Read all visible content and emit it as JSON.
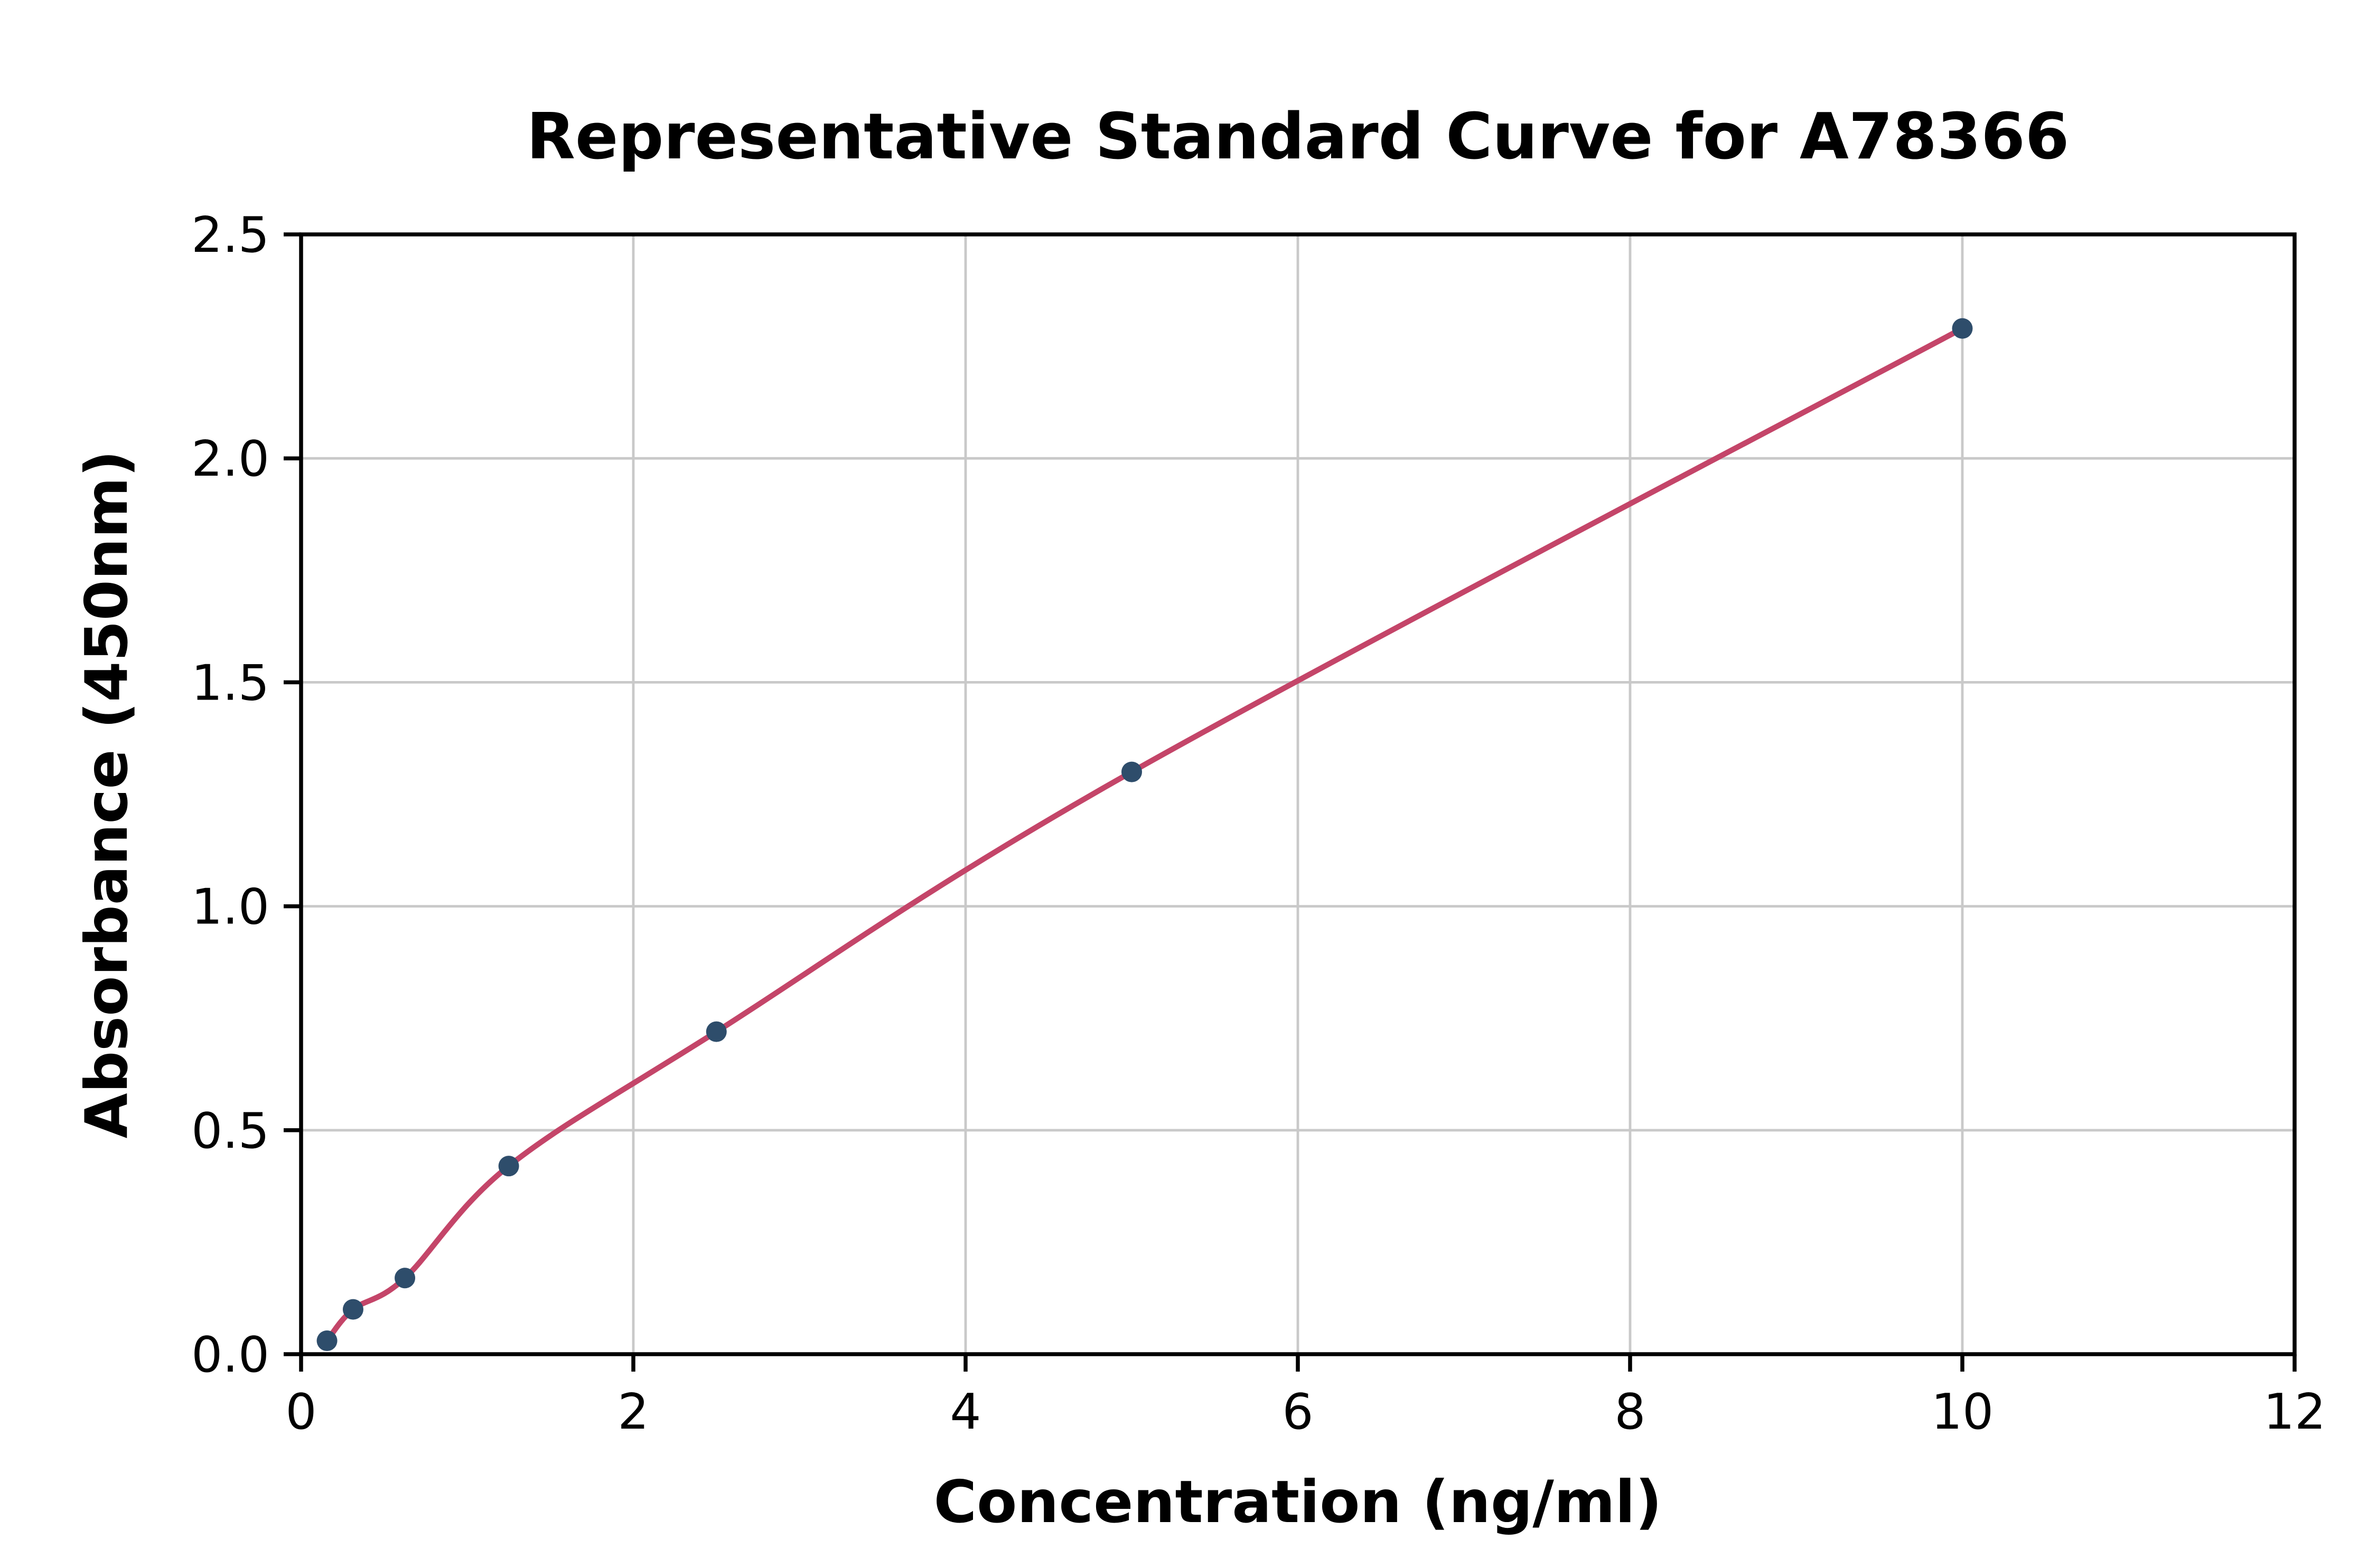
{
  "figure": {
    "background": "#ffffff"
  },
  "chart_data": {
    "type": "scatter",
    "title": "Representative Standard Curve for A78366",
    "xlabel": "Concentration (ng/ml)",
    "ylabel": "Absorbance (450nm)",
    "xlim": [
      0,
      12
    ],
    "ylim": [
      0,
      2.5
    ],
    "x_ticks": [
      "0",
      "2",
      "4",
      "6",
      "8",
      "10",
      "12"
    ],
    "x_tick_values": [
      0,
      2,
      4,
      6,
      8,
      10,
      12
    ],
    "y_ticks": [
      "0.0",
      "0.5",
      "1.0",
      "1.5",
      "2.0",
      "2.5"
    ],
    "y_tick_values": [
      0,
      0.5,
      1.0,
      1.5,
      2.0,
      2.5
    ],
    "grid": true,
    "legend": "none",
    "points": [
      {
        "x": 0.156,
        "y": 0.03
      },
      {
        "x": 0.313,
        "y": 0.1
      },
      {
        "x": 0.625,
        "y": 0.17
      },
      {
        "x": 1.25,
        "y": 0.42
      },
      {
        "x": 2.5,
        "y": 0.72
      },
      {
        "x": 5.0,
        "y": 1.3
      },
      {
        "x": 10.0,
        "y": 2.29
      }
    ],
    "curve_color": "#c44569",
    "point_color": "#2e4d6b",
    "grid_color": "#c9c9c9",
    "axis_color": "#000000"
  }
}
